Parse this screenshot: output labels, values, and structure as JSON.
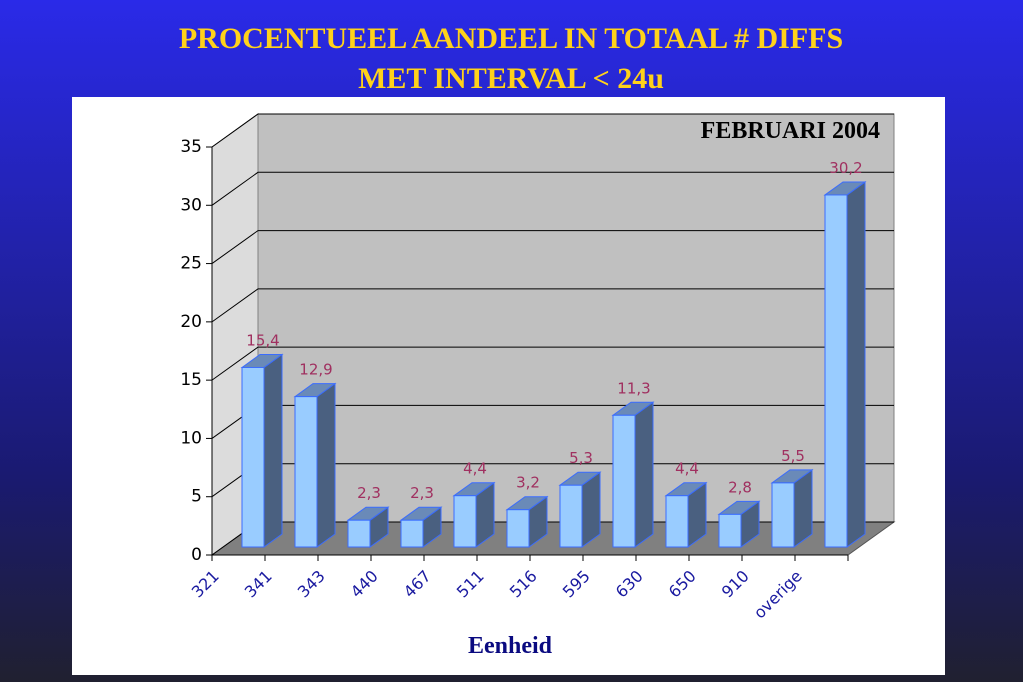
{
  "chart_data": {
    "type": "bar3d",
    "title": [
      "PROCENTUEEL AANDEEL IN TOTAAL # DIFFS",
      "MET INTERVAL < 24u"
    ],
    "annotation": "FEBRUARI 2004",
    "x_label": "Eenheid",
    "categories": [
      "321",
      "341",
      "343",
      "440",
      "467",
      "511",
      "516",
      "595",
      "630",
      "650",
      "910",
      "overige"
    ],
    "values": [
      15.4,
      12.9,
      2.3,
      2.3,
      4.4,
      3.2,
      5.3,
      11.3,
      4.4,
      2.8,
      5.5,
      30.2
    ],
    "value_labels": [
      "15,4",
      "12,9",
      "2,3",
      "2,3",
      "4,4",
      "3,2",
      "5,3",
      "11,3",
      "4,4",
      "2,8",
      "5,5",
      "30,2"
    ],
    "color": "#99ccff",
    "ylim": [
      0,
      35
    ],
    "yticks": [
      0,
      5,
      10,
      15,
      20,
      25,
      30,
      35
    ],
    "grid": true
  }
}
